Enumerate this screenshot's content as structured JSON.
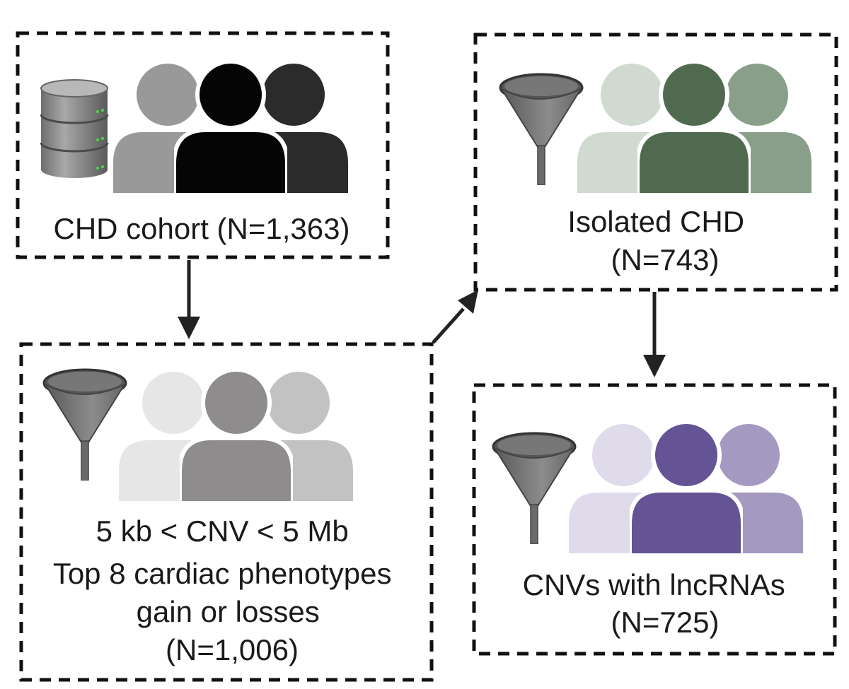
{
  "boxes": {
    "cohort": {
      "lines": [
        "CHD cohort (N=1,363)"
      ],
      "people_colors": {
        "left": "#999999",
        "center": "#050505",
        "right": "#2b2b2b"
      }
    },
    "filter_cnv": {
      "lines": [
        "5 kb < CNV < 5 Mb",
        "Top 8 cardiac phenotypes",
        "gain or losses",
        "(N=1,006)"
      ],
      "people_colors": {
        "left": "#e6e6e6",
        "center": "#8e8c8c",
        "right": "#c2c2c2"
      }
    },
    "isolated": {
      "lines": [
        "Isolated CHD",
        "(N=743)"
      ],
      "people_colors": {
        "left": "#d0dad0",
        "center": "#506a50",
        "right": "#899f89"
      }
    },
    "lncrna": {
      "lines": [
        "CNVs with lncRNAs",
        "(N=725)"
      ],
      "people_colors": {
        "left": "#dfdbeb",
        "center": "#645496",
        "right": "#a49ac1"
      }
    }
  },
  "icons": {
    "database": "database-icon",
    "funnel": "funnel-icon",
    "people": "people-group-icon"
  },
  "arrow_color": "#222222",
  "border_color": "#111111"
}
